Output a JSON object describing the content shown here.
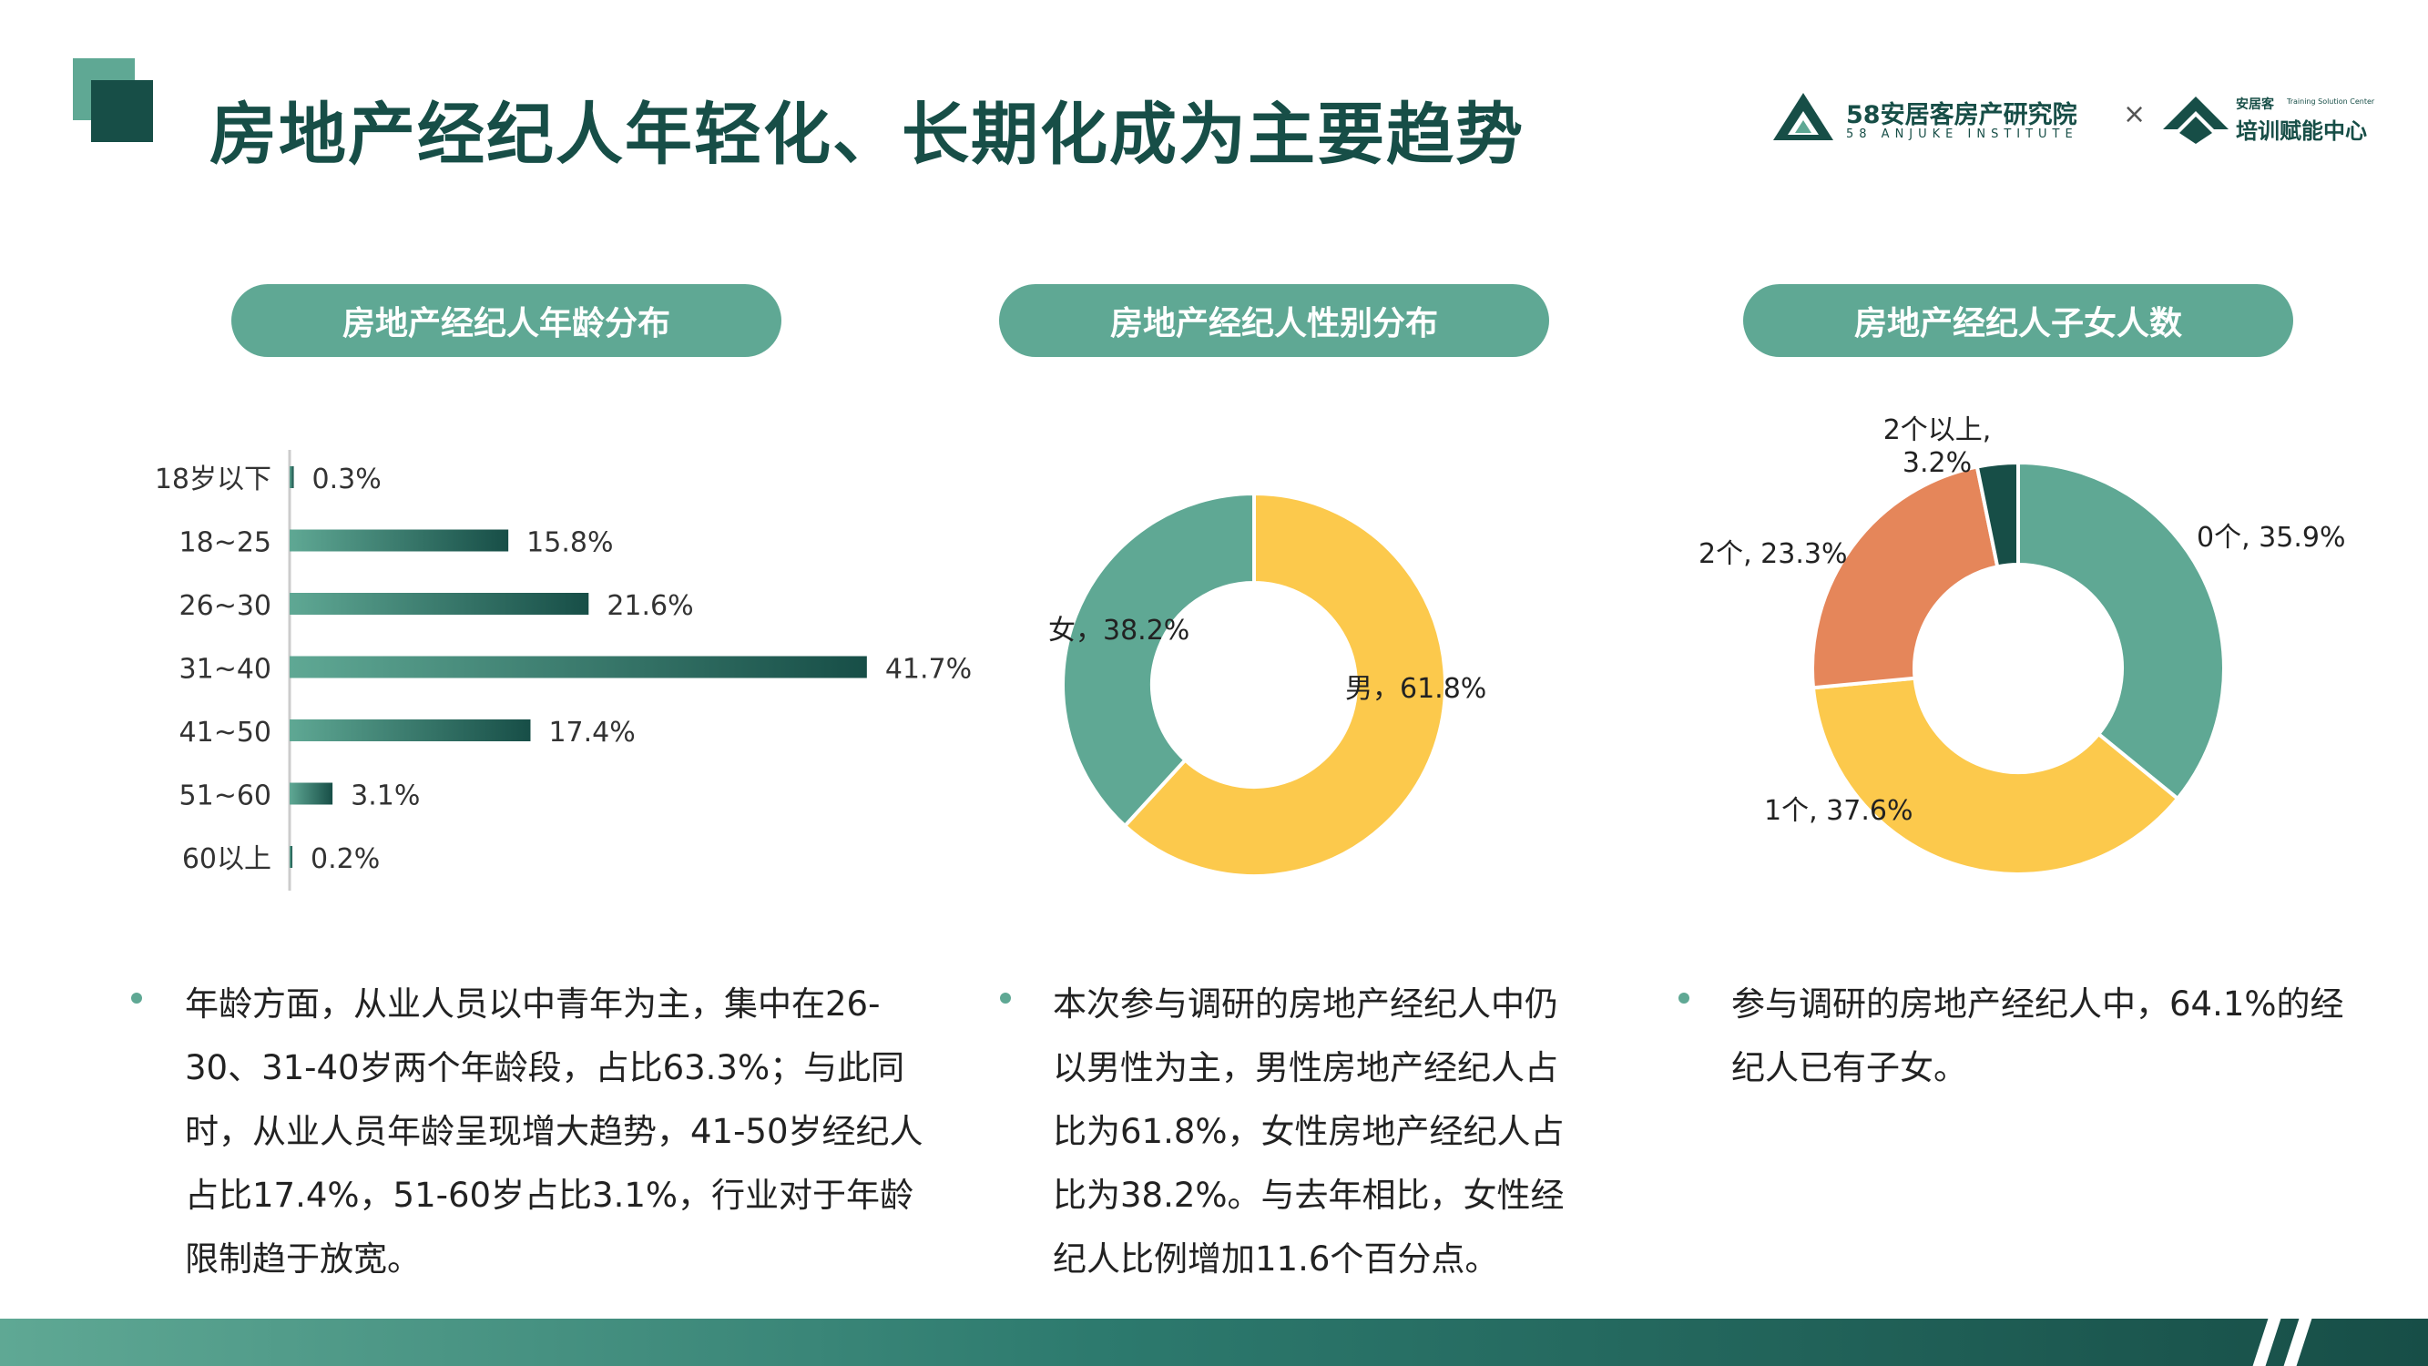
{
  "header": {
    "title": "房地产经纪人年轻化、长期化成为主要趋势",
    "logo": {
      "name": "58安居客房产研究院",
      "sub": "58 ANJUKE INSTITUTE",
      "separator": "×",
      "partner_small": "安居客",
      "partner_tiny": "Training Solution Center",
      "partner_name": "培训赋能中心"
    }
  },
  "panels": {
    "age": {
      "title": "房地产经纪人年龄分布",
      "description": "年龄方面，从业人员以中青年为主，集中在26-30、31-40岁两个年龄段，占比63.3%；与此同时，从业人员年龄呈现增大趋势，41-50岁经纪人占比17.4%，51-60岁占比3.1%，行业对于年龄限制趋于放宽。"
    },
    "gender": {
      "title": "房地产经纪人性别分布",
      "description": "本次参与调研的房地产经纪人中仍以男性为主，男性房地产经纪人占比为61.8%，女性房地产经纪人占比为38.2%。与去年相比，女性经纪人比例增加11.6个百分点。"
    },
    "children": {
      "title": "房地产经纪人子女人数",
      "description": "参与调研的房地产经纪人中，64.1%的经纪人已有子女。"
    }
  },
  "colors": {
    "brand_dark": "#174e47",
    "brand_light": "#5fa894",
    "teal": "#5fa894",
    "yellow": "#fcc94c",
    "orange": "#e5865a",
    "dark": "#174e47"
  },
  "chart_data": [
    {
      "type": "bar",
      "orientation": "horizontal",
      "categories": [
        "18岁以下",
        "18~25",
        "26~30",
        "31~40",
        "41~50",
        "51~60",
        "60以上"
      ],
      "values": [
        0.3,
        15.8,
        21.6,
        41.7,
        17.4,
        3.1,
        0.2
      ],
      "labels": [
        "0.3%",
        "15.8%",
        "21.6%",
        "41.7%",
        "17.4%",
        "3.1%",
        "0.2%"
      ],
      "unit": "%"
    },
    {
      "type": "pie",
      "donut": true,
      "slices": [
        {
          "name": "男",
          "value": 61.8,
          "label": "男，61.8%",
          "color": "#fcc94c"
        },
        {
          "name": "女",
          "value": 38.2,
          "label": "女，38.2%",
          "color": "#5fa894"
        }
      ]
    },
    {
      "type": "pie",
      "donut": true,
      "slices": [
        {
          "name": "0个",
          "value": 35.9,
          "label": "0个, 35.9%",
          "color": "#5fa894"
        },
        {
          "name": "1个",
          "value": 37.6,
          "label": "1个, 37.6%",
          "color": "#fcc94c"
        },
        {
          "name": "2个",
          "value": 23.3,
          "label": "2个, 23.3%",
          "color": "#e5865a"
        },
        {
          "name": "2个以上",
          "value": 3.2,
          "label_lines": [
            "2个以上,",
            "3.2%"
          ],
          "color": "#174e47"
        }
      ]
    }
  ]
}
